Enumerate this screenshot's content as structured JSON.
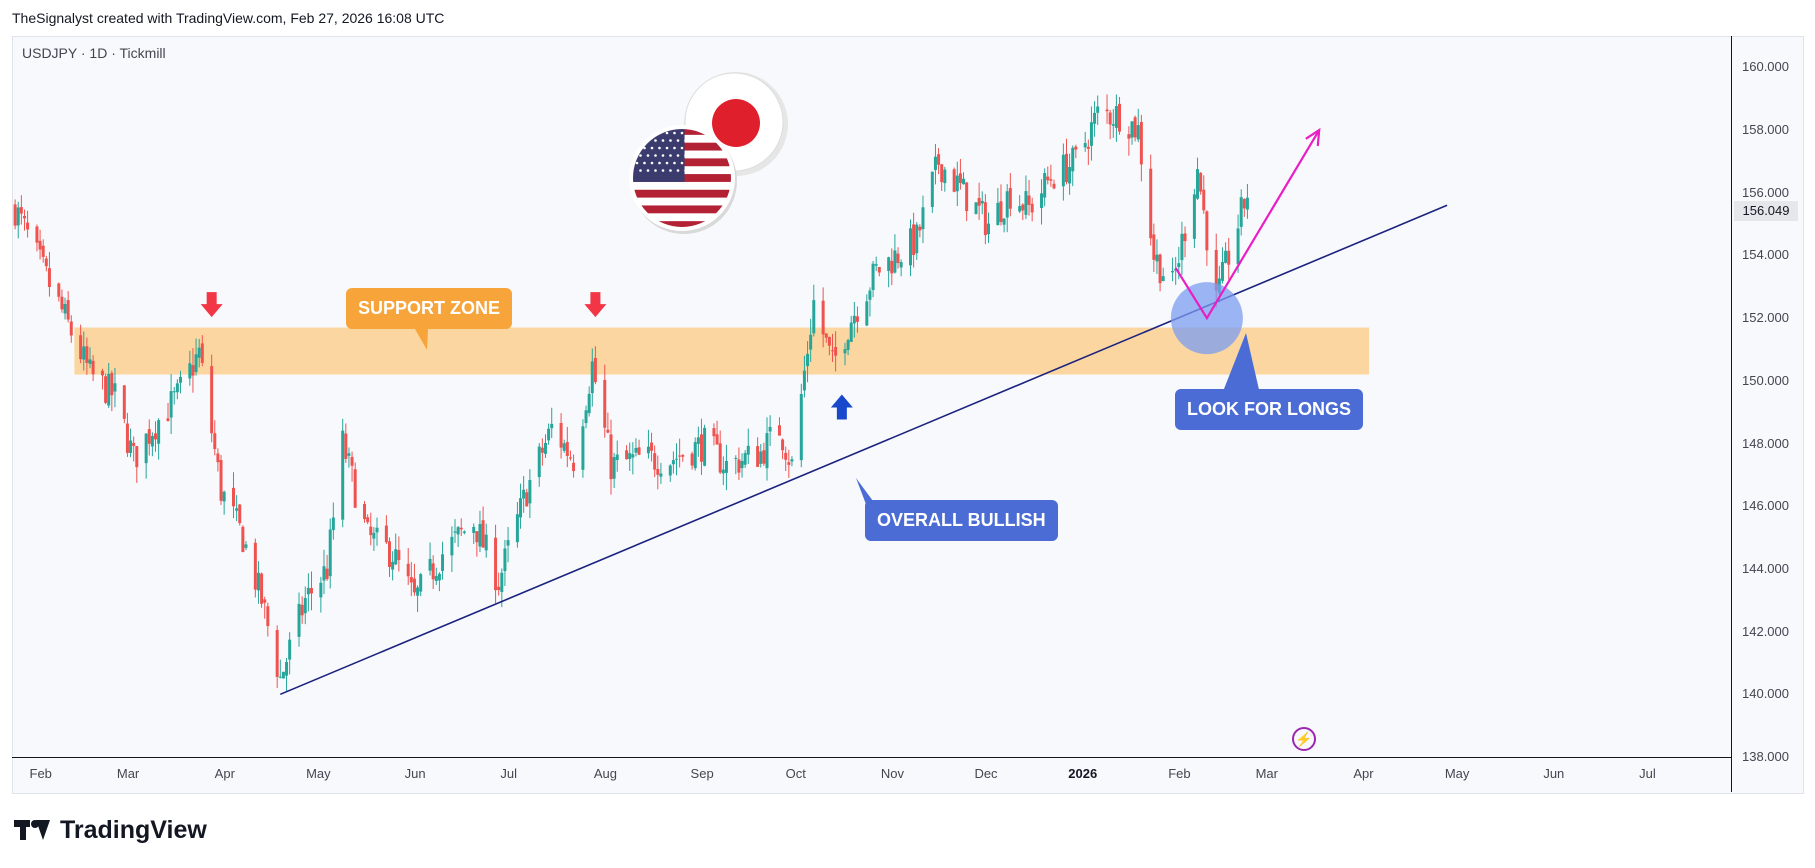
{
  "header": {
    "attribution": "TheSignalyst created with TradingView.com, Feb 27, 2026 16:08 UTC"
  },
  "symbol_info": "USDJPY · 1D · Tickmill",
  "footer": {
    "brand": "TradingView"
  },
  "price_axis": {
    "last_price": "156.049"
  },
  "annotations": {
    "support_zone": "SUPPORT ZONE",
    "overall_bullish": "OVERALL BULLISH",
    "look_for_longs": "LOOK FOR LONGS"
  },
  "colors": {
    "bull": "#26a69a",
    "bear": "#ef5350",
    "trendline": "#1a237e",
    "support_zone": "#f7a43a",
    "projection": "#e91ec4",
    "callout_blue": "#4a6cd4"
  },
  "icons": [
    "us-flag-icon",
    "japan-flag-icon",
    "down-arrow-icon",
    "up-arrow-icon",
    "flash-icon",
    "tradingview-logo-icon"
  ],
  "chart_data": {
    "type": "candlestick",
    "symbol": "USDJPY",
    "ylim": [
      138,
      161
    ],
    "yticks": [
      "160.000",
      "158.000",
      "156.000",
      "154.000",
      "152.000",
      "150.000",
      "148.000",
      "146.000",
      "144.000",
      "142.000",
      "140.000",
      "138.000"
    ],
    "xticks": [
      "Feb",
      "Mar",
      "Apr",
      "May",
      "Jun",
      "Jul",
      "Aug",
      "Sep",
      "Oct",
      "Nov",
      "Dec",
      "2026",
      "Feb",
      "Mar",
      "Apr",
      "May",
      "Jun",
      "Jul"
    ],
    "xtick_dates": [
      "2025-02-01",
      "2025-03-01",
      "2025-04-01",
      "2025-05-01",
      "2025-06-01",
      "2025-07-01",
      "2025-08-01",
      "2025-09-01",
      "2025-10-01",
      "2025-11-01",
      "2025-12-01",
      "2026-01-01",
      "2026-02-01",
      "2026-03-01",
      "2026-04-01",
      "2026-05-01",
      "2026-06-01",
      "2026-07-01"
    ],
    "x_range": [
      "2025-01-26",
      "2026-07-31"
    ],
    "last_price": 156.049,
    "anchors": [
      [
        "2025-01-27",
        155.5
      ],
      [
        "2025-02-05",
        153.5
      ],
      [
        "2025-02-12",
        152.0
      ],
      [
        "2025-02-20",
        150.2
      ],
      [
        "2025-02-28",
        149.5
      ],
      [
        "2025-03-06",
        147.5
      ],
      [
        "2025-03-12",
        148.5
      ],
      [
        "2025-03-20",
        149.5
      ],
      [
        "2025-03-27",
        150.9
      ],
      [
        "2025-04-03",
        146.5
      ],
      [
        "2025-04-10",
        145.0
      ],
      [
        "2025-04-16",
        143.0
      ],
      [
        "2025-04-22",
        140.5
      ],
      [
        "2025-04-30",
        143.0
      ],
      [
        "2025-05-07",
        144.0
      ],
      [
        "2025-05-12",
        148.0
      ],
      [
        "2025-05-20",
        145.0
      ],
      [
        "2025-05-28",
        144.5
      ],
      [
        "2025-06-04",
        143.0
      ],
      [
        "2025-06-13",
        144.5
      ],
      [
        "2025-06-23",
        145.5
      ],
      [
        "2025-07-01",
        143.6
      ],
      [
        "2025-07-10",
        146.5
      ],
      [
        "2025-07-18",
        148.5
      ],
      [
        "2025-07-25",
        147.5
      ],
      [
        "2025-07-31",
        150.5
      ],
      [
        "2025-08-06",
        147.3
      ],
      [
        "2025-08-15",
        147.5
      ],
      [
        "2025-08-25",
        147.5
      ],
      [
        "2025-09-05",
        148.0
      ],
      [
        "2025-09-12",
        147.3
      ],
      [
        "2025-09-23",
        147.7
      ],
      [
        "2025-09-29",
        148.5
      ],
      [
        "2025-10-03",
        147.3
      ],
      [
        "2025-10-10",
        152.5
      ],
      [
        "2025-10-16",
        150.5
      ],
      [
        "2025-10-22",
        152.0
      ],
      [
        "2025-10-30",
        153.5
      ],
      [
        "2025-11-12",
        154.5
      ],
      [
        "2025-11-19",
        157.0
      ],
      [
        "2025-11-27",
        156.0
      ],
      [
        "2025-12-05",
        155.0
      ],
      [
        "2025-12-12",
        156.0
      ],
      [
        "2025-12-18",
        155.5
      ],
      [
        "2025-12-25",
        156.5
      ],
      [
        "2026-01-02",
        157.0
      ],
      [
        "2026-01-09",
        158.5
      ],
      [
        "2026-01-16",
        158.5
      ],
      [
        "2026-01-22",
        158.0
      ],
      [
        "2026-01-27",
        154.0
      ],
      [
        "2026-02-02",
        153.0
      ],
      [
        "2026-02-10",
        156.8
      ],
      [
        "2026-02-16",
        152.5
      ],
      [
        "2026-02-20",
        154.0
      ],
      [
        "2026-02-26",
        156.0
      ]
    ],
    "overlays": {
      "support_zone": {
        "from": "2025-02-15",
        "to": "2026-04-06",
        "low": 150.2,
        "high": 151.7
      },
      "trendline": {
        "start": [
          "2025-04-22",
          140.0
        ],
        "end": [
          "2026-05-01",
          155.6
        ]
      },
      "projection": {
        "points": [
          [
            "2026-02-03",
            153.6
          ],
          [
            "2026-02-13",
            152.0
          ],
          [
            "2026-03-21",
            158.0
          ]
        ]
      },
      "marker_down": [
        [
          "2025-03-31",
          152.0
        ],
        [
          "2025-08-01",
          152.0
        ]
      ],
      "marker_up": [
        [
          "2025-10-19",
          149.5
        ]
      ],
      "circle": [
        "2026-02-13",
        152.0
      ]
    }
  }
}
